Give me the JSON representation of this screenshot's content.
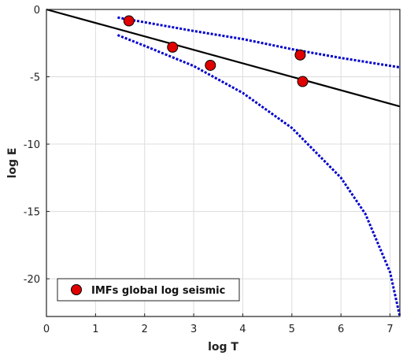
{
  "chart_data": {
    "type": "scatter",
    "xlabel": "log T",
    "ylabel": "log E",
    "xlim": [
      0,
      7.2
    ],
    "ylim": [
      -22.8,
      0
    ],
    "xticks": [
      0,
      1,
      2,
      3,
      4,
      5,
      6,
      7
    ],
    "yticks": [
      0,
      -5,
      -10,
      -15,
      -20
    ],
    "grid": true,
    "legend_position": "bottom-left",
    "series": [
      {
        "name": "IMFs global log seismic",
        "kind": "points",
        "color": "#e00000",
        "points": [
          [
            1.68,
            -0.85
          ],
          [
            2.57,
            -2.8
          ],
          [
            3.34,
            -4.15
          ],
          [
            5.17,
            -3.38
          ],
          [
            5.22,
            -5.35
          ]
        ]
      },
      {
        "kind": "line",
        "style": "solid",
        "color": "#000000",
        "points": [
          [
            0,
            0
          ],
          [
            7.2,
            -7.2
          ]
        ]
      },
      {
        "kind": "line",
        "style": "dotted",
        "color": "#0000cc",
        "points": [
          [
            1.45,
            -0.6
          ],
          [
            2,
            -0.95
          ],
          [
            3,
            -1.6
          ],
          [
            4,
            -2.2
          ],
          [
            5,
            -2.95
          ],
          [
            6,
            -3.6
          ],
          [
            7.2,
            -4.3
          ]
        ]
      },
      {
        "kind": "line",
        "style": "dotted",
        "color": "#0000cc",
        "points": [
          [
            1.45,
            -1.9
          ],
          [
            2,
            -2.7
          ],
          [
            3,
            -4.2
          ],
          [
            4,
            -6.2
          ],
          [
            5,
            -8.8
          ],
          [
            6,
            -12.5
          ],
          [
            6.5,
            -15.2
          ],
          [
            7,
            -19.5
          ],
          [
            7.2,
            -22.8
          ]
        ]
      }
    ]
  }
}
